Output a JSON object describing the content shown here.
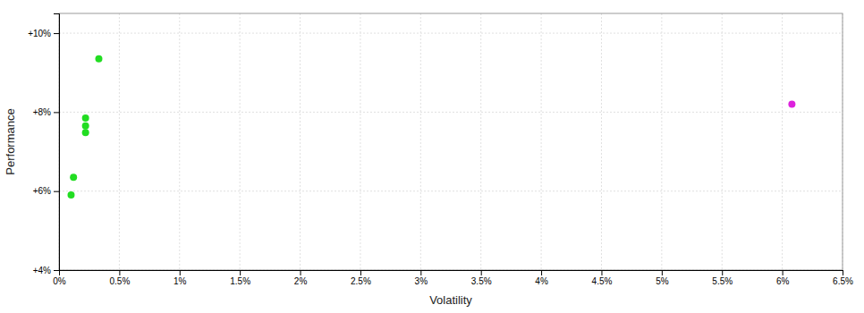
{
  "chart_data": {
    "type": "scatter",
    "xlabel": "Volatility",
    "ylabel": "Performance",
    "xlim": [
      0.0,
      0.065
    ],
    "ylim": [
      0.04,
      0.105
    ],
    "xticks": [
      {
        "value": 0.0,
        "label": "0%"
      },
      {
        "value": 0.005,
        "label": "0.5%"
      },
      {
        "value": 0.01,
        "label": "1%"
      },
      {
        "value": 0.015,
        "label": "1.5%"
      },
      {
        "value": 0.02,
        "label": "2%"
      },
      {
        "value": 0.025,
        "label": "2.5%"
      },
      {
        "value": 0.03,
        "label": "3%"
      },
      {
        "value": 0.035,
        "label": "3.5%"
      },
      {
        "value": 0.04,
        "label": "4%"
      },
      {
        "value": 0.045,
        "label": "4.5%"
      },
      {
        "value": 0.05,
        "label": "5%"
      },
      {
        "value": 0.055,
        "label": "5.5%"
      },
      {
        "value": 0.06,
        "label": "6%"
      },
      {
        "value": 0.065,
        "label": "6.5%"
      }
    ],
    "yticks": [
      {
        "value": 0.04,
        "label": "+4%"
      },
      {
        "value": 0.06,
        "label": "+6%"
      },
      {
        "value": 0.08,
        "label": "+8%"
      },
      {
        "value": 0.1,
        "label": "+10%"
      }
    ],
    "grid": true,
    "series": [
      {
        "color": "#22dd22",
        "x": [
          0.0033,
          0.0022,
          0.0022,
          0.0022,
          0.0012,
          0.001
        ],
        "values": [
          0.0935,
          0.0785,
          0.0765,
          0.0748,
          0.0635,
          0.059
        ]
      },
      {
        "color": "#dd22dd",
        "x": [
          0.0608
        ],
        "values": [
          0.082
        ]
      }
    ]
  }
}
